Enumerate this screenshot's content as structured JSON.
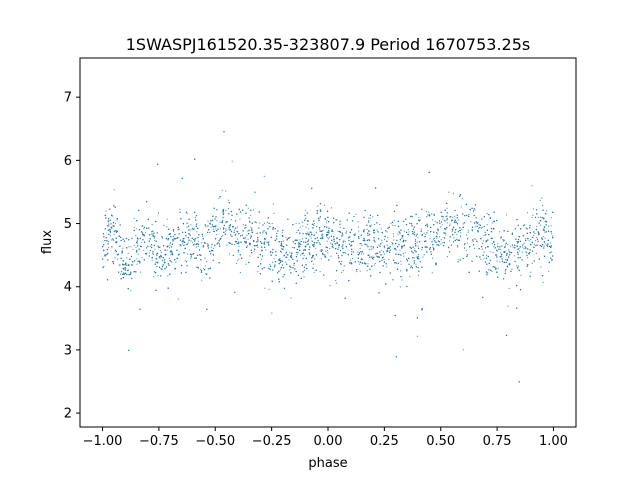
{
  "chart_data": {
    "type": "scatter",
    "title": "1SWASPJ161520.35-323807.9 Period 1670753.25s",
    "xlabel": "phase",
    "ylabel": "flux",
    "xlim": [
      -1.1,
      1.1
    ],
    "ylim": [
      1.78,
      7.62
    ],
    "xticks": [
      -1.0,
      -0.75,
      -0.5,
      -0.25,
      0.0,
      0.25,
      0.5,
      0.75,
      1.0
    ],
    "xtick_labels": [
      "−1.00",
      "−0.75",
      "−0.50",
      "−0.25",
      "0.00",
      "0.25",
      "0.50",
      "0.75",
      "1.00"
    ],
    "yticks": [
      2,
      3,
      4,
      5,
      6,
      7
    ],
    "ytick_labels": [
      "2",
      "3",
      "4",
      "5",
      "6",
      "7"
    ],
    "grid": false,
    "legend": "none",
    "marker_color": "#1f77b4",
    "series_description_points": [
      {
        "phase": -1.0,
        "flux": 4.7
      },
      {
        "phase": -0.95,
        "flux": 4.9
      },
      {
        "phase": -0.9,
        "flux": 4.3
      },
      {
        "phase": -0.85,
        "flux": 4.6
      },
      {
        "phase": -0.8,
        "flux": 4.8
      },
      {
        "phase": -0.75,
        "flux": 4.5
      },
      {
        "phase": -0.7,
        "flux": 4.6
      },
      {
        "phase": -0.65,
        "flux": 4.7
      },
      {
        "phase": -0.6,
        "flux": 4.8
      },
      {
        "phase": -0.55,
        "flux": 4.6
      },
      {
        "phase": -0.5,
        "flux": 4.9
      },
      {
        "phase": -0.45,
        "flux": 5.0
      },
      {
        "phase": -0.4,
        "flux": 4.8
      },
      {
        "phase": -0.35,
        "flux": 4.9
      },
      {
        "phase": -0.3,
        "flux": 4.7
      },
      {
        "phase": -0.25,
        "flux": 4.6
      },
      {
        "phase": -0.2,
        "flux": 4.5
      },
      {
        "phase": -0.15,
        "flux": 4.6
      },
      {
        "phase": -0.1,
        "flux": 4.7
      },
      {
        "phase": -0.05,
        "flux": 4.8
      },
      {
        "phase": 0.0,
        "flux": 4.7
      },
      {
        "phase": 0.05,
        "flux": 4.6
      },
      {
        "phase": 0.1,
        "flux": 4.7
      },
      {
        "phase": 0.15,
        "flux": 4.6
      },
      {
        "phase": 0.2,
        "flux": 4.7
      },
      {
        "phase": 0.25,
        "flux": 4.6
      },
      {
        "phase": 0.3,
        "flux": 4.7
      },
      {
        "phase": 0.35,
        "flux": 4.6
      },
      {
        "phase": 0.4,
        "flux": 4.7
      },
      {
        "phase": 0.45,
        "flux": 4.8
      },
      {
        "phase": 0.5,
        "flux": 4.9
      },
      {
        "phase": 0.55,
        "flux": 5.0
      },
      {
        "phase": 0.6,
        "flux": 4.8
      },
      {
        "phase": 0.65,
        "flux": 4.9
      },
      {
        "phase": 0.7,
        "flux": 4.7
      },
      {
        "phase": 0.75,
        "flux": 4.6
      },
      {
        "phase": 0.8,
        "flux": 4.5
      },
      {
        "phase": 0.85,
        "flux": 4.6
      },
      {
        "phase": 0.9,
        "flux": 4.7
      },
      {
        "phase": 0.95,
        "flux": 4.8
      },
      {
        "phase": 1.0,
        "flux": 4.7
      }
    ]
  }
}
